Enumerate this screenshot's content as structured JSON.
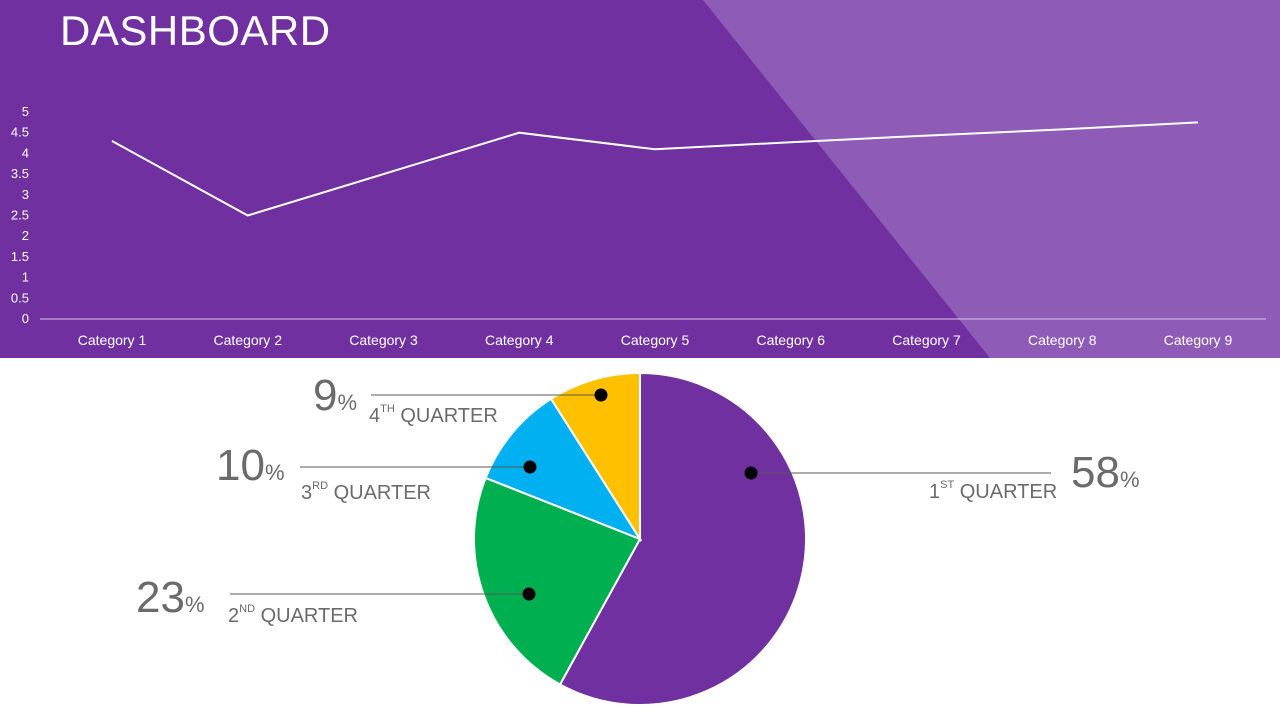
{
  "page": {
    "title": "DASHBOARD"
  },
  "colors": {
    "header_bg": "#7030a0",
    "header_overlay": "#8e5cb6",
    "line": "#ffffff",
    "text_on_header": "#ffffff",
    "label_text": "#6b6b6b",
    "leader_line": "#595959",
    "dot": "#000000"
  },
  "chart_data": [
    {
      "type": "line",
      "categories": [
        "Category 1",
        "Category 2",
        "Category 3",
        "Category 4",
        "Category 5",
        "Category 6",
        "Category 7",
        "Category 8",
        "Category 9"
      ],
      "series": [
        {
          "values": [
            4.3,
            2.5,
            3.5,
            4.5,
            4.1,
            4.27,
            4.43,
            4.58,
            4.75
          ]
        }
      ],
      "yticks": [
        "0",
        "0.5",
        "1",
        "1.5",
        "2",
        "2.5",
        "3",
        "3.5",
        "4",
        "4.5",
        "5"
      ],
      "ylim": [
        0,
        5
      ],
      "grid": false,
      "legend": "none",
      "title": "",
      "xlabel": "",
      "ylabel": ""
    },
    {
      "type": "pie",
      "slices": [
        {
          "key": "q1",
          "value": 58,
          "color": "#7030a0",
          "pct": "58",
          "ordinal": "1",
          "suffix": "ST",
          "word": "QUARTER"
        },
        {
          "key": "q2",
          "value": 23,
          "color": "#00b050",
          "pct": "23",
          "ordinal": "2",
          "suffix": "ND",
          "word": "QUARTER"
        },
        {
          "key": "q3",
          "value": 10,
          "color": "#00b0f0",
          "pct": "10",
          "ordinal": "3",
          "suffix": "RD",
          "word": "QUARTER"
        },
        {
          "key": "q4",
          "value": 9,
          "color": "#ffc000",
          "pct": "9",
          "ordinal": "4",
          "suffix": "TH",
          "word": "QUARTER"
        }
      ],
      "percent_symbol": "%",
      "legend": "none"
    }
  ]
}
